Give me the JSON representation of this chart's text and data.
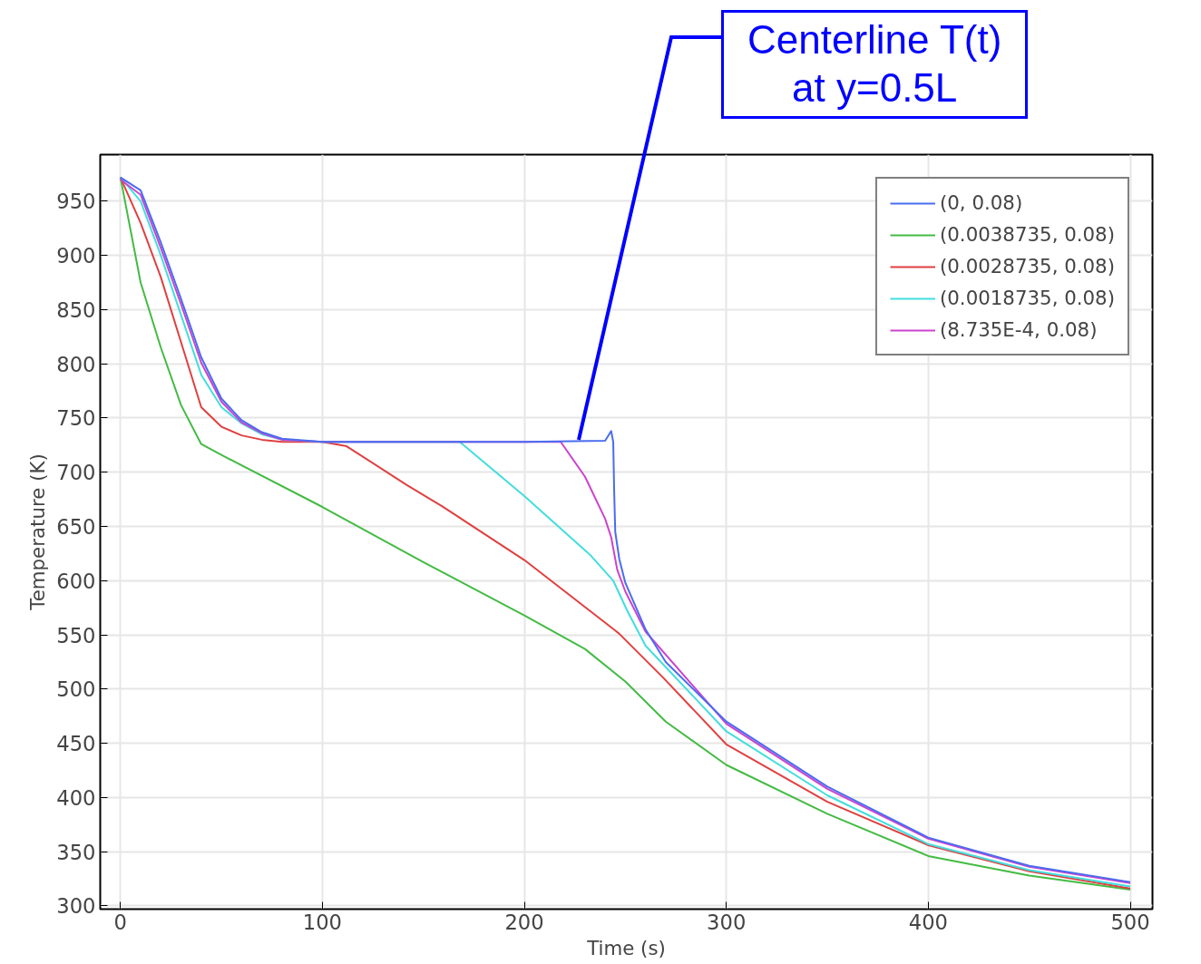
{
  "chart_data": {
    "type": "line",
    "xlabel": "Time (s)",
    "ylabel": "Temperature (K)",
    "xlim": [
      -10,
      511
    ],
    "ylim": [
      297,
      993
    ],
    "xticks": [
      0,
      100,
      200,
      300,
      400,
      500
    ],
    "yticks": [
      300,
      350,
      400,
      450,
      500,
      550,
      600,
      650,
      700,
      750,
      800,
      850,
      900,
      950
    ],
    "grid": true,
    "legend": "top right",
    "line_style": "solid",
    "annotations": [
      "Centerline T(t)\nat y=0.5L"
    ],
    "series": [
      {
        "name": "(0, 0.08)",
        "color": "#4a6cf0",
        "x": [
          0,
          10,
          20,
          30,
          40,
          50,
          60,
          70,
          80,
          100,
          150,
          200,
          240,
          243,
          244,
          244.5,
          245,
          247,
          250,
          260,
          270,
          300,
          350,
          400,
          450,
          500
        ],
        "values": [
          972,
          960,
          912,
          860,
          806,
          768,
          748,
          737,
          731,
          728,
          728,
          728,
          729,
          738,
          728,
          680,
          645,
          620,
          598,
          555,
          525,
          470,
          410,
          363,
          337,
          322
        ]
      },
      {
        "name": "(0.0038735, 0.08)",
        "color": "#44bb44",
        "x": [
          0,
          10,
          20,
          30,
          40,
          50,
          100,
          150,
          200,
          230,
          250,
          270,
          300,
          350,
          400,
          450,
          500
        ],
        "values": [
          972,
          875,
          815,
          762,
          726,
          716,
          668,
          617,
          568,
          537,
          507,
          470,
          430,
          385,
          346,
          328,
          315
        ]
      },
      {
        "name": "(0.0028735, 0.08)",
        "color": "#e04040",
        "x": [
          0,
          10,
          20,
          30,
          40,
          50,
          60,
          70,
          80,
          100,
          112,
          142,
          159,
          200,
          245,
          247,
          269,
          300,
          350,
          400,
          450,
          500
        ],
        "values": [
          972,
          930,
          880,
          820,
          760,
          742,
          734,
          730,
          728,
          728,
          724,
          688,
          669,
          619,
          554,
          551,
          510,
          449,
          396,
          356,
          332,
          316
        ]
      },
      {
        "name": "(0.0018735, 0.08)",
        "color": "#44dddd",
        "x": [
          0,
          10,
          20,
          30,
          40,
          50,
          60,
          70,
          80,
          100,
          168,
          200,
          233,
          244,
          251,
          260,
          300,
          350,
          400,
          450,
          500
        ],
        "values": [
          972,
          950,
          900,
          845,
          790,
          760,
          745,
          735,
          730,
          728,
          728,
          678,
          623,
          600,
          572,
          540,
          461,
          402,
          357,
          333,
          318
        ]
      },
      {
        "name": "(8.735E-4, 0.08)",
        "color": "#cc44cc",
        "x": [
          0,
          10,
          20,
          30,
          40,
          50,
          60,
          70,
          80,
          100,
          150,
          200,
          218,
          230,
          240,
          243,
          246,
          250,
          260,
          300,
          350,
          400,
          450,
          500
        ],
        "values": [
          970,
          956,
          907,
          855,
          801,
          765,
          746,
          736,
          730,
          728,
          728,
          728,
          728,
          696,
          657,
          640,
          610,
          590,
          553,
          468,
          408,
          362,
          336,
          321
        ]
      }
    ]
  }
}
